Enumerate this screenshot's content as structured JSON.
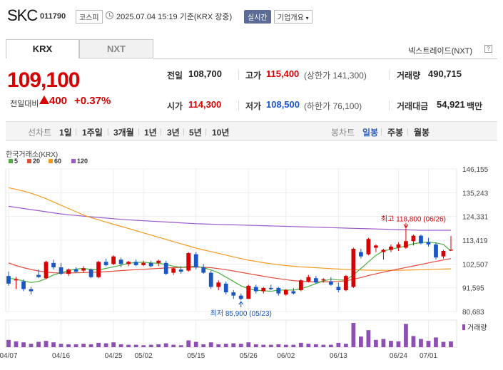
{
  "header": {
    "stock_name": "SKC",
    "stock_code": "011790",
    "market_badge": "코스피",
    "timestamp": "2025.07.04 15:19 기준(KRX 장중)",
    "realtime_label": "실시간",
    "company_overview_label": "기업개요"
  },
  "tabs": {
    "krx": "KRX",
    "nxt": "NXT"
  },
  "nxt_link": "넥스트레이드(NXT)",
  "price": {
    "current": "109,100",
    "change_label": "전일대비",
    "change_amount": "400",
    "change_percent": "+0.37%"
  },
  "stats": {
    "prev_close_label": "전일",
    "prev_close": "108,700",
    "high_label": "고가",
    "high": "115,400",
    "upper_limit": "(상한가 141,300)",
    "volume_label": "거래량",
    "volume": "490,715",
    "open_label": "시가",
    "open": "114,300",
    "low_label": "저가",
    "low": "108,500",
    "lower_limit": "(하한가 76,100)",
    "amount_label": "거래대금",
    "amount": "54,921",
    "amount_unit": "백만"
  },
  "period_bar": {
    "line_chart": "선차트",
    "periods": [
      "1일",
      "1주일",
      "3개월",
      "1년",
      "3년",
      "5년",
      "10년"
    ],
    "candle_chart": "봉차트",
    "candle_periods": [
      "일봉",
      "주봉",
      "월봉"
    ],
    "active_candle": "일봉"
  },
  "colors": {
    "up": "#d60000",
    "down": "#1a56c4",
    "ma5": "#4caf3f",
    "ma20": "#e24c3b",
    "ma60": "#f39a1e",
    "ma120": "#9b59c9"
  },
  "chart_data": {
    "type": "candlestick",
    "exchange_label": "한국거래소(KRX)",
    "legend": [
      "5",
      "20",
      "60",
      "120"
    ],
    "y_ticks": [
      146155,
      135243,
      124331,
      113419,
      102507,
      91595,
      80683
    ],
    "ylim": [
      80683,
      146155
    ],
    "x_tick_labels": [
      "04/07",
      "04/16",
      "04/25",
      "05/02",
      "05/15",
      "05/26",
      "06/02",
      "06/13",
      "06/24",
      "07/01"
    ],
    "x_tick_indices": [
      0,
      7,
      14,
      18,
      25,
      32,
      37,
      44,
      52,
      56
    ],
    "annotation_high": "최고 118,800 (06/26)",
    "annotation_low": "최저 85,900 (05/23)",
    "high_index": 53,
    "low_index": 31,
    "volume_label": "거래량",
    "candles": [
      [
        97000,
        99000,
        92500,
        93500
      ],
      [
        95000,
        96500,
        91000,
        95500
      ],
      [
        94500,
        95500,
        90000,
        91000
      ],
      [
        91000,
        92000,
        88500,
        90000
      ],
      [
        97500,
        100000,
        96000,
        96500
      ],
      [
        96000,
        104000,
        95500,
        103500
      ],
      [
        103000,
        104500,
        100000,
        101000
      ],
      [
        101000,
        103000,
        97500,
        98000
      ],
      [
        98000,
        100500,
        97000,
        100000
      ],
      [
        100000,
        101000,
        98500,
        99000
      ],
      [
        99500,
        101500,
        98500,
        100500
      ],
      [
        100000,
        100500,
        96000,
        96500
      ],
      [
        96500,
        104000,
        96000,
        103500
      ],
      [
        103500,
        105000,
        101500,
        102000
      ],
      [
        102500,
        106500,
        102000,
        106000
      ],
      [
        104500,
        105500,
        101000,
        102500
      ],
      [
        102500,
        104000,
        101500,
        103500
      ],
      [
        103500,
        104500,
        101500,
        102000
      ],
      [
        102000,
        104000,
        101500,
        103000
      ],
      [
        103000,
        104000,
        101000,
        101500
      ],
      [
        103000,
        104500,
        101500,
        104000
      ],
      [
        103000,
        104000,
        97500,
        98000
      ],
      [
        98500,
        101000,
        97500,
        100500
      ],
      [
        100000,
        101500,
        98000,
        99000
      ],
      [
        99500,
        108000,
        99000,
        107500
      ],
      [
        107000,
        108000,
        100000,
        101000
      ],
      [
        101000,
        102500,
        98000,
        98500
      ],
      [
        98500,
        99500,
        91000,
        92000
      ],
      [
        92000,
        95000,
        90500,
        94000
      ],
      [
        93500,
        94500,
        88500,
        89500
      ],
      [
        89500,
        90500,
        86500,
        88000
      ],
      [
        88000,
        89000,
        85900,
        86500
      ],
      [
        86500,
        93000,
        86500,
        92500
      ],
      [
        92000,
        93000,
        89000,
        90000
      ],
      [
        90000,
        92000,
        89000,
        91500
      ],
      [
        91500,
        93000,
        90500,
        91000
      ],
      [
        91500,
        92000,
        88000,
        89000
      ],
      [
        88500,
        91000,
        88000,
        90500
      ],
      [
        90000,
        91500,
        88500,
        89000
      ],
      [
        90500,
        95500,
        90000,
        95000
      ],
      [
        94500,
        97500,
        94000,
        96500
      ],
      [
        96000,
        97000,
        93500,
        94000
      ],
      [
        95000,
        96000,
        94000,
        95500
      ],
      [
        94500,
        96500,
        92500,
        93000
      ],
      [
        92000,
        94000,
        89500,
        90500
      ],
      [
        90500,
        97500,
        90000,
        97000
      ],
      [
        92000,
        110000,
        91500,
        109500
      ],
      [
        108000,
        109500,
        105000,
        106000
      ],
      [
        107000,
        114500,
        106500,
        114000
      ],
      [
        110000,
        111500,
        108000,
        111000
      ],
      [
        108000,
        109500,
        104500,
        109000
      ],
      [
        109000,
        111500,
        108000,
        110500
      ],
      [
        110000,
        112500,
        108500,
        111500
      ],
      [
        110000,
        118800,
        109500,
        113000
      ],
      [
        113000,
        116000,
        111000,
        115500
      ],
      [
        115500,
        116000,
        111500,
        112000
      ],
      [
        112500,
        114500,
        110500,
        111500
      ],
      [
        111500,
        112500,
        104500,
        105500
      ],
      [
        106000,
        109000,
        105000,
        108500
      ],
      [
        108700,
        115400,
        108500,
        109100
      ]
    ],
    "volumes": [
      30,
      24,
      20,
      14,
      22,
      26,
      20,
      14,
      12,
      12,
      14,
      12,
      18,
      16,
      20,
      12,
      10,
      10,
      8,
      10,
      12,
      16,
      10,
      8,
      28,
      22,
      12,
      20,
      12,
      14,
      16,
      14,
      20,
      12,
      10,
      10,
      12,
      10,
      10,
      18,
      14,
      12,
      10,
      10,
      18,
      14,
      100,
      44,
      70,
      30,
      34,
      26,
      24,
      96,
      46,
      34,
      26,
      40,
      22,
      24
    ],
    "ma": {
      "ma5": [
        96000,
        95500,
        94800,
        94000,
        94500,
        95800,
        97500,
        98500,
        99500,
        100200,
        100500,
        100000,
        99800,
        100500,
        101200,
        102000,
        102800,
        103200,
        103300,
        103000,
        102800,
        102300,
        101500,
        101000,
        101300,
        101500,
        100800,
        99800,
        98500,
        96500,
        94500,
        92500,
        91200,
        90500,
        90200,
        90000,
        90500,
        90600,
        90500,
        91200,
        92200,
        93500,
        94800,
        95500,
        95200,
        95200,
        97500,
        100500,
        103500,
        106500,
        108500,
        109300,
        110000,
        110800,
        111800,
        112300,
        112600,
        112200,
        111500,
        108500
      ],
      "ma20": [
        103000,
        101800,
        100800,
        100000,
        99300,
        98800,
        98500,
        98400,
        98400,
        98500,
        98600,
        98700,
        98800,
        99000,
        99200,
        99500,
        99700,
        99900,
        100100,
        100300,
        100500,
        100700,
        100800,
        100900,
        101000,
        101100,
        101000,
        100800,
        100400,
        99900,
        99300,
        98700,
        98100,
        97500,
        96900,
        96300,
        95800,
        95300,
        94900,
        94600,
        94400,
        94300,
        94300,
        94400,
        94500,
        94800,
        95500,
        96300,
        97200,
        98000,
        98800,
        99500,
        100200,
        100900,
        101600,
        102300,
        103000,
        103700,
        104400,
        105000
      ],
      "ma60": [
        137500,
        136800,
        136000,
        135000,
        133800,
        132500,
        131000,
        129500,
        128000,
        126500,
        125000,
        123800,
        122800,
        121800,
        120800,
        119800,
        118800,
        117800,
        116800,
        115800,
        114800,
        113800,
        112800,
        111800,
        110800,
        109800,
        109000,
        108200,
        107400,
        106600,
        105800,
        105000,
        104300,
        103700,
        103100,
        102600,
        102200,
        101800,
        101500,
        101200,
        101000,
        100800,
        100600,
        100400,
        100200,
        100000,
        99900,
        99800,
        99700,
        99600,
        99600,
        99600,
        99600,
        99700,
        99800,
        99900,
        100000,
        100100,
        100200,
        100300
      ],
      "ma120": [
        129000,
        128500,
        128000,
        127500,
        127000,
        126500,
        126000,
        125500,
        125100,
        124800,
        124500,
        124200,
        123900,
        123600,
        123300,
        123000,
        122800,
        122600,
        122400,
        122200,
        122000,
        121800,
        121600,
        121400,
        121200,
        121000,
        120900,
        120800,
        120700,
        120600,
        120500,
        120400,
        120300,
        120200,
        120100,
        120000,
        119900,
        119800,
        119700,
        119600,
        119500,
        119400,
        119300,
        119200,
        119100,
        119000,
        118900,
        118800,
        118700,
        118600,
        118500,
        118400,
        118300,
        118200,
        118100,
        118000,
        118000,
        118000,
        118000,
        118000
      ]
    }
  }
}
